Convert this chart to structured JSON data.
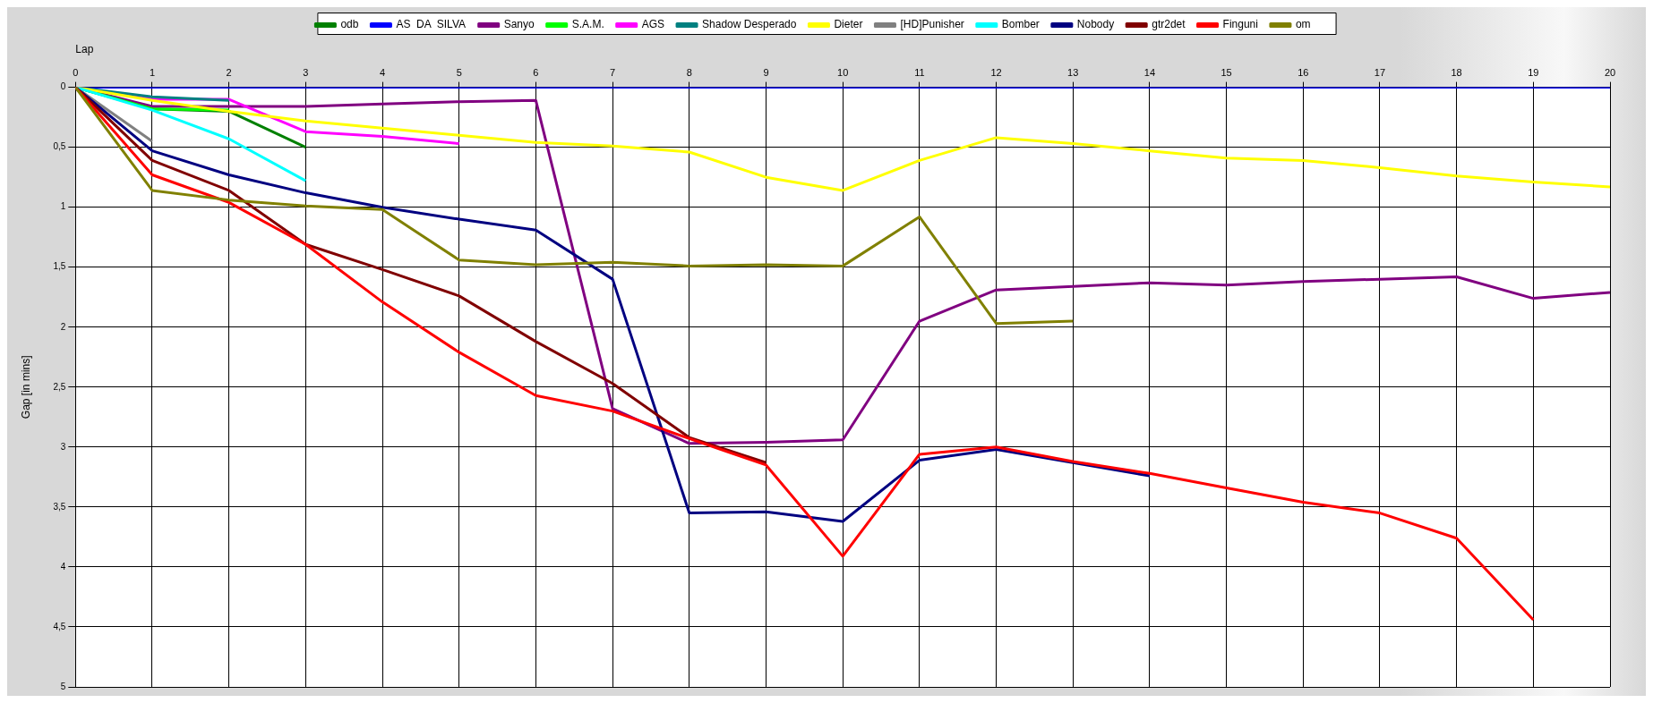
{
  "chart_data": {
    "type": "line",
    "xlabel": "Lap",
    "ylabel": "Gap [in mins]",
    "x": [
      0,
      1,
      2,
      3,
      4,
      5,
      6,
      7,
      8,
      9,
      10,
      11,
      12,
      13,
      14,
      15,
      16,
      17,
      18,
      19,
      20
    ],
    "xlim": [
      0,
      20
    ],
    "xticks": [
      0,
      1,
      2,
      3,
      4,
      5,
      6,
      7,
      8,
      9,
      10,
      11,
      12,
      13,
      14,
      15,
      16,
      17,
      18,
      19,
      20
    ],
    "ylim": [
      5,
      0
    ],
    "yticks": [
      0,
      {
        "value": 0.5,
        "label": "0,5"
      },
      1,
      {
        "value": 1.5,
        "label": "1,5"
      },
      2,
      {
        "value": 2.5,
        "label": "2,5"
      },
      3,
      {
        "value": 3.5,
        "label": "3,5"
      },
      4,
      {
        "value": 4.5,
        "label": "4,5"
      },
      5
    ],
    "grid": true,
    "legend": "top",
    "marker": "none",
    "line_style": "solid",
    "series": [
      {
        "name": "odb",
        "color": "#008000",
        "x": [
          0,
          1,
          2,
          3
        ],
        "values": [
          0,
          0.18,
          0.2,
          0.5
        ]
      },
      {
        "name": "AS  DA  SILVA",
        "color": "#0000ff",
        "values": [
          0,
          0,
          0,
          0,
          0,
          0,
          0,
          0,
          0,
          0,
          0,
          0,
          0,
          0,
          0,
          0,
          0,
          0,
          0,
          0,
          0
        ]
      },
      {
        "name": "Sanyo",
        "color": "#800080",
        "values": [
          0,
          0.16,
          0.16,
          0.16,
          0.14,
          0.12,
          0.11,
          2.68,
          2.97,
          2.96,
          2.94,
          1.95,
          1.69,
          1.66,
          1.63,
          1.65,
          1.62,
          1.6,
          1.58,
          1.76,
          1.71
        ]
      },
      {
        "name": "S.A.M.",
        "color": "#00ff00",
        "x": [
          0,
          1,
          2
        ],
        "values": [
          0,
          0.18,
          0.19
        ]
      },
      {
        "name": "AGS",
        "color": "#ff00ff",
        "x": [
          0,
          1,
          2,
          3,
          4,
          5
        ],
        "values": [
          0,
          0.1,
          0.1,
          0.37,
          0.41,
          0.47
        ]
      },
      {
        "name": "Shadow Desperado",
        "color": "#008080",
        "x": [
          0,
          1,
          2
        ],
        "values": [
          0,
          0.08,
          0.11
        ]
      },
      {
        "name": "Dieter",
        "color": "#ffff00",
        "values": [
          0,
          0.11,
          0.2,
          0.28,
          0.34,
          0.4,
          0.46,
          0.49,
          0.54,
          0.75,
          0.86,
          0.61,
          0.42,
          0.47,
          0.53,
          0.59,
          0.61,
          0.67,
          0.74,
          0.79,
          0.83
        ]
      },
      {
        "name": "[HD]Punisher",
        "color": "#808080",
        "x": [
          0,
          1
        ],
        "values": [
          0,
          0.45
        ]
      },
      {
        "name": "Bomber",
        "color": "#00ffff",
        "x": [
          0,
          1,
          2,
          3
        ],
        "values": [
          0,
          0.19,
          0.43,
          0.78
        ]
      },
      {
        "name": "Nobody",
        "color": "#000080",
        "x": [
          0,
          1,
          2,
          3,
          4,
          5,
          6,
          7,
          8,
          9,
          10,
          11,
          12,
          13,
          14
        ],
        "values": [
          0,
          0.53,
          0.73,
          0.88,
          1.0,
          1.1,
          1.19,
          1.6,
          3.55,
          3.54,
          3.62,
          3.11,
          3.02,
          3.13,
          3.24
        ]
      },
      {
        "name": "gtr2det",
        "color": "#800000",
        "x": [
          0,
          1,
          2,
          3,
          4,
          5,
          6,
          7,
          8,
          9
        ],
        "values": [
          0,
          0.61,
          0.86,
          1.31,
          1.52,
          1.74,
          2.12,
          2.47,
          2.92,
          3.13
        ]
      },
      {
        "name": "Finguni",
        "color": "#ff0000",
        "x": [
          0,
          1,
          2,
          3,
          4,
          5,
          6,
          7,
          8,
          9,
          10,
          11,
          12,
          13,
          14,
          15,
          16,
          17,
          18,
          19
        ],
        "values": [
          0,
          0.73,
          0.96,
          1.31,
          1.79,
          2.21,
          2.57,
          2.7,
          2.93,
          3.15,
          3.91,
          3.06,
          3.0,
          3.12,
          3.22,
          3.34,
          3.46,
          3.55,
          3.76,
          4.44
        ]
      },
      {
        "name": "om",
        "color": "#808000",
        "x": [
          0,
          1,
          2,
          3,
          4,
          5,
          6,
          7,
          8,
          9,
          10,
          11,
          12,
          13
        ],
        "values": [
          0,
          0.86,
          0.94,
          0.99,
          1.02,
          1.44,
          1.48,
          1.46,
          1.49,
          1.48,
          1.49,
          1.08,
          1.97,
          1.95
        ]
      }
    ]
  }
}
